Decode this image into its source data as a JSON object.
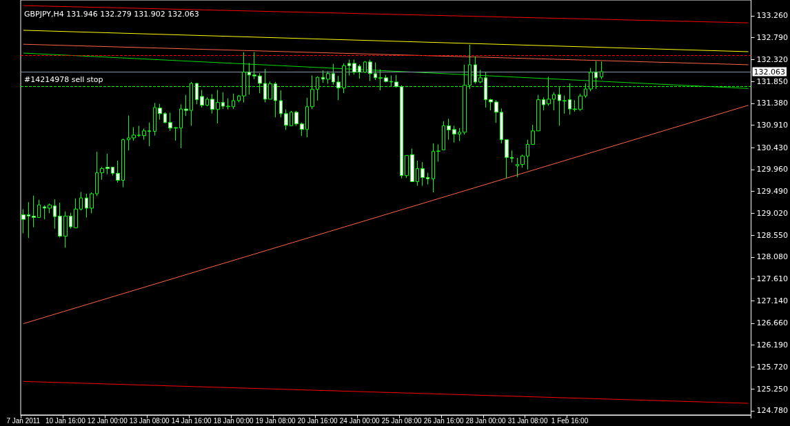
{
  "chart_data": {
    "type": "candlestick",
    "title": "GBPJPY,H4 131.946 132.279 131.902 132.063",
    "color": "#00ff00",
    "categories": [
      "7 Jan 2011",
      null,
      null,
      null,
      null,
      null,
      null,
      null,
      "10 Jan 16:00",
      null,
      null,
      null,
      null,
      null,
      null,
      null,
      "12 Jan 00:00",
      null,
      null,
      null,
      null,
      null,
      null,
      null,
      "13 Jan 08:00",
      null,
      null,
      null,
      null,
      null,
      null,
      null,
      "14 Jan 16:00",
      null,
      null,
      null,
      null,
      null,
      null,
      null,
      "18 Jan 00:00",
      null,
      null,
      null,
      null,
      null,
      null,
      null,
      "19 Jan 08:00",
      null,
      null,
      null,
      null,
      null,
      null,
      null,
      "20 Jan 16:00",
      null,
      null,
      null,
      null,
      null,
      null,
      null,
      "24 Jan 00:00",
      null,
      null,
      null,
      null,
      null,
      null,
      null,
      "25 Jan 08:00",
      null,
      null,
      null,
      null,
      null,
      null,
      null,
      "26 Jan 16:00",
      null,
      null,
      null,
      null,
      null,
      null,
      null,
      "28 Jan 00:00",
      null,
      null,
      null,
      null,
      null,
      null,
      null,
      "31 Jan 08:00",
      null,
      null,
      null,
      null,
      null,
      null,
      null,
      "1 Feb 16:00",
      null,
      null,
      null,
      null,
      null,
      null,
      null,
      null,
      null,
      null,
      null,
      null,
      null,
      null,
      null,
      null,
      null,
      null,
      null,
      null,
      null,
      null,
      null,
      null,
      null,
      null,
      null,
      null,
      null,
      null,
      null,
      null,
      null,
      null
    ],
    "ohlc": [
      [
        128.99,
        129.11,
        128.59,
        128.89
      ],
      [
        128.99,
        129.26,
        128.49,
        128.96
      ],
      [
        128.96,
        129.4,
        128.72,
        128.93
      ],
      [
        128.93,
        129.31,
        128.92,
        129.2
      ],
      [
        129.16,
        129.19,
        128.89,
        129.13
      ],
      [
        129.13,
        129.23,
        129.02,
        129.2
      ],
      [
        129.18,
        129.32,
        128.69,
        128.95
      ],
      [
        128.96,
        129.25,
        128.5,
        128.53
      ],
      [
        128.53,
        129.06,
        128.28,
        128.96
      ],
      [
        128.96,
        129.03,
        128.69,
        128.73
      ],
      [
        128.71,
        129.34,
        128.71,
        129.11
      ],
      [
        129.11,
        129.48,
        129.08,
        129.35
      ],
      [
        129.35,
        129.44,
        128.93,
        129.13
      ],
      [
        129.13,
        129.47,
        129.02,
        129.44
      ],
      [
        129.44,
        130.34,
        129.39,
        129.89
      ],
      [
        129.89,
        130.02,
        129.74,
        129.98
      ],
      [
        130.01,
        130.3,
        129.86,
        129.98
      ],
      [
        130.01,
        130.01,
        129.83,
        129.88
      ],
      [
        129.88,
        130.15,
        129.68,
        129.73
      ],
      [
        129.73,
        130.62,
        129.58,
        130.6
      ],
      [
        130.6,
        131.12,
        130.37,
        130.64
      ],
      [
        130.64,
        130.87,
        130.58,
        130.7
      ],
      [
        130.69,
        130.9,
        130.66,
        130.7
      ],
      [
        130.69,
        130.84,
        130.6,
        130.79
      ],
      [
        130.79,
        130.97,
        130.46,
        130.78
      ],
      [
        130.78,
        131.39,
        130.69,
        131.29
      ],
      [
        131.28,
        131.37,
        131.03,
        131.16
      ],
      [
        131.16,
        131.19,
        130.95,
        130.97
      ],
      [
        130.97,
        131.18,
        130.79,
        130.85
      ],
      [
        130.86,
        130.87,
        130.58,
        130.85
      ],
      [
        130.85,
        131.36,
        130.42,
        131.26
      ],
      [
        131.26,
        131.56,
        131.11,
        131.23
      ],
      [
        131.23,
        131.84,
        130.9,
        131.81
      ],
      [
        131.81,
        131.82,
        131.36,
        131.46
      ],
      [
        131.53,
        131.67,
        131.29,
        131.34
      ],
      [
        131.34,
        131.51,
        131.32,
        131.47
      ],
      [
        131.47,
        131.58,
        131.16,
        131.25
      ],
      [
        131.25,
        131.67,
        130.95,
        131.4
      ],
      [
        131.4,
        131.62,
        131.26,
        131.32
      ],
      [
        131.31,
        131.49,
        131.25,
        131.32
      ],
      [
        131.31,
        131.59,
        131.26,
        131.44
      ],
      [
        131.44,
        131.56,
        131.4,
        131.54
      ],
      [
        131.54,
        132.48,
        131.4,
        132.05
      ],
      [
        132.05,
        132.25,
        131.57,
        131.99
      ],
      [
        131.99,
        132.48,
        131.9,
        131.97
      ],
      [
        131.97,
        132.03,
        131.6,
        131.81
      ],
      [
        131.81,
        132.12,
        131.4,
        131.47
      ],
      [
        131.47,
        131.85,
        131.47,
        131.8
      ],
      [
        131.8,
        131.84,
        131.08,
        131.44
      ],
      [
        131.44,
        131.66,
        131.08,
        131.16
      ],
      [
        131.16,
        131.25,
        130.81,
        130.91
      ],
      [
        130.9,
        131.22,
        130.9,
        131.19
      ],
      [
        131.19,
        131.22,
        130.9,
        130.94
      ],
      [
        130.94,
        130.97,
        130.68,
        130.82
      ],
      [
        130.82,
        131.5,
        130.65,
        131.31
      ],
      [
        131.31,
        131.98,
        131.26,
        131.68
      ],
      [
        131.68,
        131.96,
        131.44,
        131.94
      ],
      [
        131.94,
        132.09,
        131.82,
        131.9
      ],
      [
        131.9,
        132.07,
        131.8,
        132.02
      ],
      [
        132.02,
        132.23,
        131.78,
        131.84
      ],
      [
        131.84,
        131.97,
        131.45,
        131.71
      ],
      [
        131.71,
        132.24,
        131.6,
        132.19
      ],
      [
        132.24,
        132.32,
        131.98,
        132.19
      ],
      [
        132.24,
        132.32,
        132.0,
        132.05
      ],
      [
        132.18,
        132.22,
        131.91,
        132.05
      ],
      [
        132.05,
        132.29,
        132.03,
        132.27
      ],
      [
        132.27,
        132.32,
        131.86,
        132.02
      ],
      [
        132.02,
        132.26,
        131.88,
        131.93
      ],
      [
        131.93,
        132.11,
        131.66,
        131.92
      ],
      [
        131.93,
        131.99,
        131.83,
        131.85
      ],
      [
        131.85,
        131.98,
        131.74,
        131.84
      ],
      [
        131.84,
        131.99,
        131.72,
        131.74
      ],
      [
        131.74,
        131.77,
        129.77,
        129.83
      ],
      [
        129.83,
        130.26,
        129.78,
        130.26
      ],
      [
        130.28,
        130.41,
        129.7,
        129.7
      ],
      [
        129.7,
        130.15,
        129.61,
        129.98
      ],
      [
        129.98,
        130.12,
        129.61,
        129.79
      ],
      [
        129.79,
        129.89,
        129.64,
        129.76
      ],
      [
        129.76,
        130.52,
        129.47,
        130.35
      ],
      [
        130.35,
        130.5,
        130.13,
        130.36
      ],
      [
        130.38,
        131.0,
        130.38,
        130.9
      ],
      [
        130.9,
        131.05,
        130.6,
        130.81
      ],
      [
        130.82,
        130.9,
        130.54,
        130.72
      ],
      [
        130.72,
        130.85,
        130.57,
        130.76
      ],
      [
        130.76,
        132.21,
        130.71,
        131.77
      ],
      [
        131.77,
        132.64,
        131.69,
        132.21
      ],
      [
        132.21,
        132.39,
        131.8,
        131.84
      ],
      [
        131.84,
        132.1,
        131.81,
        131.93
      ],
      [
        131.93,
        132.05,
        131.29,
        131.46
      ],
      [
        131.46,
        131.48,
        131.23,
        131.41
      ],
      [
        131.41,
        131.45,
        130.96,
        131.19
      ],
      [
        131.19,
        131.27,
        130.52,
        130.6
      ],
      [
        130.6,
        130.6,
        129.77,
        130.22
      ],
      [
        130.22,
        130.37,
        130.11,
        130.2
      ],
      [
        130.04,
        130.21,
        129.8,
        130.07
      ],
      [
        130.07,
        130.28,
        130.0,
        130.25
      ],
      [
        130.25,
        130.6,
        129.96,
        130.5
      ],
      [
        130.5,
        130.92,
        130.5,
        130.79
      ],
      [
        130.79,
        131.56,
        130.79,
        131.46
      ],
      [
        131.46,
        131.51,
        131.23,
        131.35
      ],
      [
        131.37,
        131.95,
        131.33,
        131.47
      ],
      [
        131.47,
        131.62,
        131.23,
        131.57
      ],
      [
        131.57,
        131.73,
        130.9,
        131.44
      ],
      [
        131.44,
        131.55,
        131.16,
        131.43
      ],
      [
        131.46,
        131.81,
        131.14,
        131.26
      ],
      [
        131.26,
        131.45,
        131.2,
        131.25
      ],
      [
        131.25,
        131.59,
        131.22,
        131.54
      ],
      [
        131.54,
        131.81,
        131.5,
        131.69
      ],
      [
        131.69,
        132.14,
        131.64,
        132.05
      ],
      [
        132.05,
        132.29,
        131.69,
        131.93
      ],
      [
        131.946,
        132.279,
        131.902,
        132.063
      ],
      null,
      null,
      null,
      null,
      null,
      null,
      null,
      null,
      null,
      null,
      null,
      null,
      null,
      null,
      null,
      null,
      null,
      null,
      null,
      null,
      null,
      null,
      null,
      null,
      null,
      null,
      null,
      null
    ],
    "series": [
      {
        "type": "line",
        "color": "#ff0000",
        "values": [
          133.48,
          null,
          null,
          null,
          null,
          null,
          null,
          null,
          null,
          null,
          null,
          null,
          null,
          null,
          null,
          null,
          null,
          null,
          null,
          null,
          null,
          null,
          null,
          null,
          null,
          null,
          null,
          null,
          null,
          null,
          null,
          null,
          null,
          null,
          null,
          null,
          null,
          null,
          null,
          null,
          null,
          null,
          null,
          null,
          null,
          null,
          null,
          null,
          null,
          null,
          null,
          null,
          null,
          null,
          null,
          null,
          null,
          null,
          null,
          null,
          null,
          null,
          null,
          null,
          null,
          null,
          null,
          null,
          null,
          null,
          null,
          null,
          null,
          null,
          null,
          null,
          null,
          null,
          null,
          null,
          null,
          null,
          null,
          null,
          null,
          null,
          null,
          null,
          null,
          null,
          null,
          null,
          null,
          null,
          null,
          null,
          null,
          null,
          null,
          null,
          null,
          null,
          null,
          null,
          null,
          null,
          null,
          null,
          null,
          null,
          null,
          null,
          null,
          null,
          null,
          null,
          null,
          null,
          null,
          null,
          null,
          null,
          null,
          null,
          null,
          null,
          null,
          null,
          null,
          null,
          null,
          null,
          null,
          null,
          null,
          null,
          null,
          null,
          133.11
        ]
      },
      {
        "type": "line",
        "color": "#ffff00",
        "values": [
          132.95,
          null,
          null,
          null,
          null,
          null,
          null,
          null,
          null,
          null,
          null,
          null,
          null,
          null,
          null,
          null,
          null,
          null,
          null,
          null,
          null,
          null,
          null,
          null,
          null,
          null,
          null,
          null,
          null,
          null,
          null,
          null,
          null,
          null,
          null,
          null,
          null,
          null,
          null,
          null,
          null,
          null,
          null,
          null,
          null,
          null,
          null,
          null,
          null,
          null,
          null,
          null,
          null,
          null,
          null,
          null,
          null,
          null,
          null,
          null,
          null,
          null,
          null,
          null,
          null,
          null,
          null,
          null,
          null,
          null,
          null,
          null,
          null,
          null,
          null,
          null,
          null,
          null,
          null,
          null,
          null,
          null,
          null,
          null,
          null,
          null,
          null,
          null,
          null,
          null,
          null,
          null,
          null,
          null,
          null,
          null,
          null,
          null,
          null,
          null,
          null,
          null,
          null,
          null,
          null,
          null,
          null,
          null,
          null,
          null,
          null,
          null,
          null,
          null,
          null,
          null,
          null,
          null,
          null,
          null,
          null,
          null,
          null,
          null,
          null,
          null,
          null,
          null,
          null,
          null,
          null,
          null,
          null,
          null,
          null,
          null,
          null,
          null,
          132.49
        ]
      },
      {
        "type": "line",
        "color": "#ff6347",
        "values": [
          132.65,
          null,
          null,
          null,
          null,
          null,
          null,
          null,
          null,
          null,
          null,
          null,
          null,
          null,
          null,
          null,
          null,
          null,
          null,
          null,
          null,
          null,
          null,
          null,
          null,
          null,
          null,
          null,
          null,
          null,
          null,
          null,
          null,
          null,
          null,
          null,
          null,
          null,
          null,
          null,
          null,
          null,
          null,
          null,
          null,
          null,
          null,
          null,
          null,
          null,
          null,
          null,
          null,
          null,
          null,
          null,
          null,
          null,
          null,
          null,
          null,
          null,
          null,
          null,
          null,
          null,
          null,
          null,
          null,
          null,
          null,
          null,
          null,
          null,
          null,
          null,
          null,
          null,
          null,
          null,
          null,
          null,
          null,
          null,
          null,
          null,
          null,
          null,
          null,
          null,
          null,
          null,
          null,
          null,
          null,
          null,
          null,
          null,
          null,
          null,
          null,
          null,
          null,
          null,
          null,
          null,
          null,
          null,
          null,
          null,
          null,
          null,
          null,
          null,
          null,
          null,
          null,
          null,
          null,
          null,
          null,
          null,
          null,
          null,
          null,
          null,
          null,
          null,
          null,
          null,
          null,
          null,
          null,
          null,
          null,
          null,
          null,
          null,
          132.21
        ]
      },
      {
        "type": "line",
        "color": "#00dd00",
        "values": [
          132.46,
          null,
          null,
          null,
          null,
          null,
          null,
          null,
          null,
          null,
          null,
          null,
          null,
          null,
          null,
          null,
          null,
          null,
          null,
          null,
          null,
          null,
          null,
          null,
          null,
          null,
          null,
          null,
          null,
          null,
          null,
          null,
          null,
          null,
          null,
          null,
          null,
          null,
          null,
          null,
          null,
          null,
          null,
          null,
          null,
          null,
          null,
          null,
          null,
          null,
          null,
          null,
          null,
          null,
          null,
          null,
          null,
          null,
          null,
          null,
          null,
          null,
          null,
          null,
          null,
          null,
          null,
          null,
          null,
          null,
          null,
          null,
          null,
          null,
          null,
          null,
          null,
          null,
          null,
          null,
          null,
          null,
          null,
          null,
          null,
          null,
          null,
          null,
          null,
          null,
          null,
          null,
          null,
          null,
          null,
          null,
          null,
          null,
          null,
          null,
          null,
          null,
          null,
          null,
          null,
          null,
          null,
          null,
          null,
          null,
          null,
          null,
          null,
          null,
          null,
          null,
          null,
          null,
          null,
          null,
          null,
          null,
          null,
          null,
          null,
          null,
          null,
          null,
          null,
          null,
          null,
          null,
          null,
          null,
          null,
          null,
          null,
          null,
          131.7
        ]
      },
      {
        "type": "line",
        "color": "#ff6347",
        "values": [
          126.65,
          null,
          null,
          null,
          null,
          null,
          null,
          null,
          null,
          null,
          null,
          null,
          null,
          null,
          null,
          null,
          null,
          null,
          null,
          null,
          null,
          null,
          null,
          null,
          null,
          null,
          null,
          null,
          null,
          null,
          null,
          null,
          null,
          null,
          null,
          null,
          null,
          null,
          null,
          null,
          null,
          null,
          null,
          null,
          null,
          null,
          null,
          null,
          null,
          null,
          null,
          null,
          null,
          null,
          null,
          null,
          null,
          null,
          null,
          null,
          null,
          null,
          null,
          null,
          null,
          null,
          null,
          null,
          null,
          null,
          null,
          null,
          null,
          null,
          null,
          null,
          null,
          null,
          null,
          null,
          null,
          null,
          null,
          null,
          null,
          null,
          null,
          null,
          null,
          null,
          null,
          null,
          null,
          null,
          null,
          null,
          null,
          null,
          null,
          null,
          null,
          null,
          null,
          null,
          null,
          null,
          null,
          null,
          null,
          null,
          null,
          null,
          null,
          null,
          null,
          null,
          null,
          null,
          null,
          null,
          null,
          null,
          null,
          null,
          null,
          null,
          null,
          null,
          null,
          null,
          null,
          null,
          null,
          null,
          null,
          null,
          null,
          null,
          131.34
        ]
      },
      {
        "type": "line",
        "color": "#ff0000",
        "values": [
          125.41,
          null,
          null,
          null,
          null,
          null,
          null,
          null,
          null,
          null,
          null,
          null,
          null,
          null,
          null,
          null,
          null,
          null,
          null,
          null,
          null,
          null,
          null,
          null,
          null,
          null,
          null,
          null,
          null,
          null,
          null,
          null,
          null,
          null,
          null,
          null,
          null,
          null,
          null,
          null,
          null,
          null,
          null,
          null,
          null,
          null,
          null,
          null,
          null,
          null,
          null,
          null,
          null,
          null,
          null,
          null,
          null,
          null,
          null,
          null,
          null,
          null,
          null,
          null,
          null,
          null,
          null,
          null,
          null,
          null,
          null,
          null,
          null,
          null,
          null,
          null,
          null,
          null,
          null,
          null,
          null,
          null,
          null,
          null,
          null,
          null,
          null,
          null,
          null,
          null,
          null,
          null,
          null,
          null,
          null,
          null,
          null,
          null,
          null,
          null,
          null,
          null,
          null,
          null,
          null,
          null,
          null,
          null,
          null,
          null,
          null,
          null,
          null,
          null,
          null,
          null,
          null,
          null,
          null,
          null,
          null,
          null,
          null,
          null,
          null,
          null,
          null,
          null,
          null,
          null,
          null,
          null,
          null,
          null,
          null,
          null,
          null,
          null,
          124.94
        ]
      }
    ],
    "ref_lines": [
      {
        "axis": "y",
        "value": 132.415,
        "color": "#ff0000",
        "line_style": "dashed"
      },
      {
        "axis": "y",
        "value": 132.063,
        "label": "132.063",
        "color": "#8796a8",
        "line_style": "solid"
      },
      {
        "axis": "y",
        "value": 131.74,
        "label": "#14214978 sell stop",
        "color": "#00ff00",
        "line_style": "dashed"
      }
    ],
    "ylim": [
      124.69,
      133.6
    ],
    "yticks": [
      {
        "value": 124.78,
        "label": "124.780"
      },
      {
        "value": 125.25,
        "label": "125.250"
      },
      {
        "value": 125.72,
        "label": "125.720"
      },
      {
        "value": 126.19,
        "label": "126.190"
      },
      {
        "value": 126.66,
        "label": "126.660"
      },
      {
        "value": 127.14,
        "label": "127.140"
      },
      {
        "value": 127.61,
        "label": "127.610"
      },
      {
        "value": 128.08,
        "label": "128.080"
      },
      {
        "value": 128.55,
        "label": "128.550"
      },
      {
        "value": 129.02,
        "label": "129.020"
      },
      {
        "value": 129.49,
        "label": "129.490"
      },
      {
        "value": 129.96,
        "label": "129.960"
      },
      {
        "value": 130.43,
        "label": "130.430"
      },
      {
        "value": 130.91,
        "label": "130.910"
      },
      {
        "value": 131.38,
        "label": "131.380"
      },
      {
        "value": 131.85,
        "label": "131.850"
      },
      {
        "value": 132.32,
        "label": "132.320"
      },
      {
        "value": 132.79,
        "label": "132.790"
      },
      {
        "value": 133.26,
        "label": "133.260"
      }
    ]
  }
}
